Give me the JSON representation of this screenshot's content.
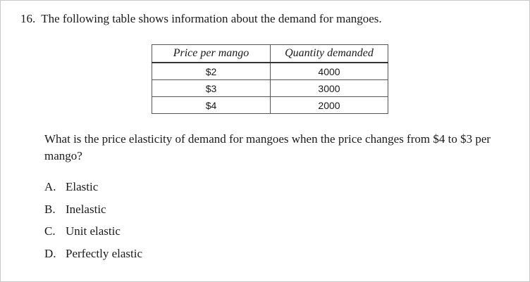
{
  "question": {
    "number": "16.",
    "text": "The following table shows information about the demand for mangoes."
  },
  "table": {
    "headers": [
      "Price per mango",
      "Quantity demanded"
    ],
    "rows": [
      [
        "$2",
        "4000"
      ],
      [
        "$3",
        "3000"
      ],
      [
        "$4",
        "2000"
      ]
    ]
  },
  "prompt": "What is the price elasticity of demand for mangoes when the price changes from $4 to $3 per mango?",
  "choices": [
    {
      "letter": "A.",
      "text": "Elastic"
    },
    {
      "letter": "B.",
      "text": "Inelastic"
    },
    {
      "letter": "C.",
      "text": "Unit elastic"
    },
    {
      "letter": "D.",
      "text": "Perfectly elastic"
    }
  ]
}
